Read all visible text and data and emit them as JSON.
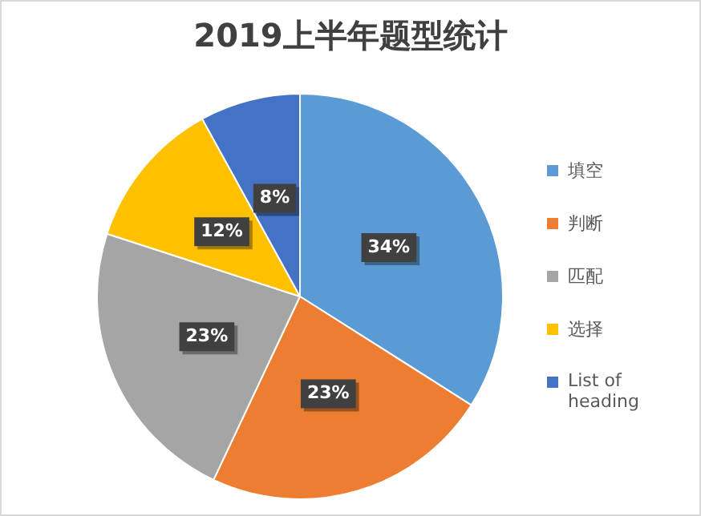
{
  "chart_data": {
    "type": "pie",
    "title": "2019上半年题型统计",
    "categories": [
      "填空",
      "判断",
      "匹配",
      "选择",
      "List of heading"
    ],
    "values": [
      34,
      23,
      23,
      12,
      8
    ],
    "value_labels": [
      "34%",
      "23%",
      "23%",
      "12%",
      "8%"
    ],
    "colors": [
      "#5b9bd5",
      "#ed7d31",
      "#a5a5a5",
      "#ffc000",
      "#4472c4"
    ],
    "legend": "right"
  }
}
